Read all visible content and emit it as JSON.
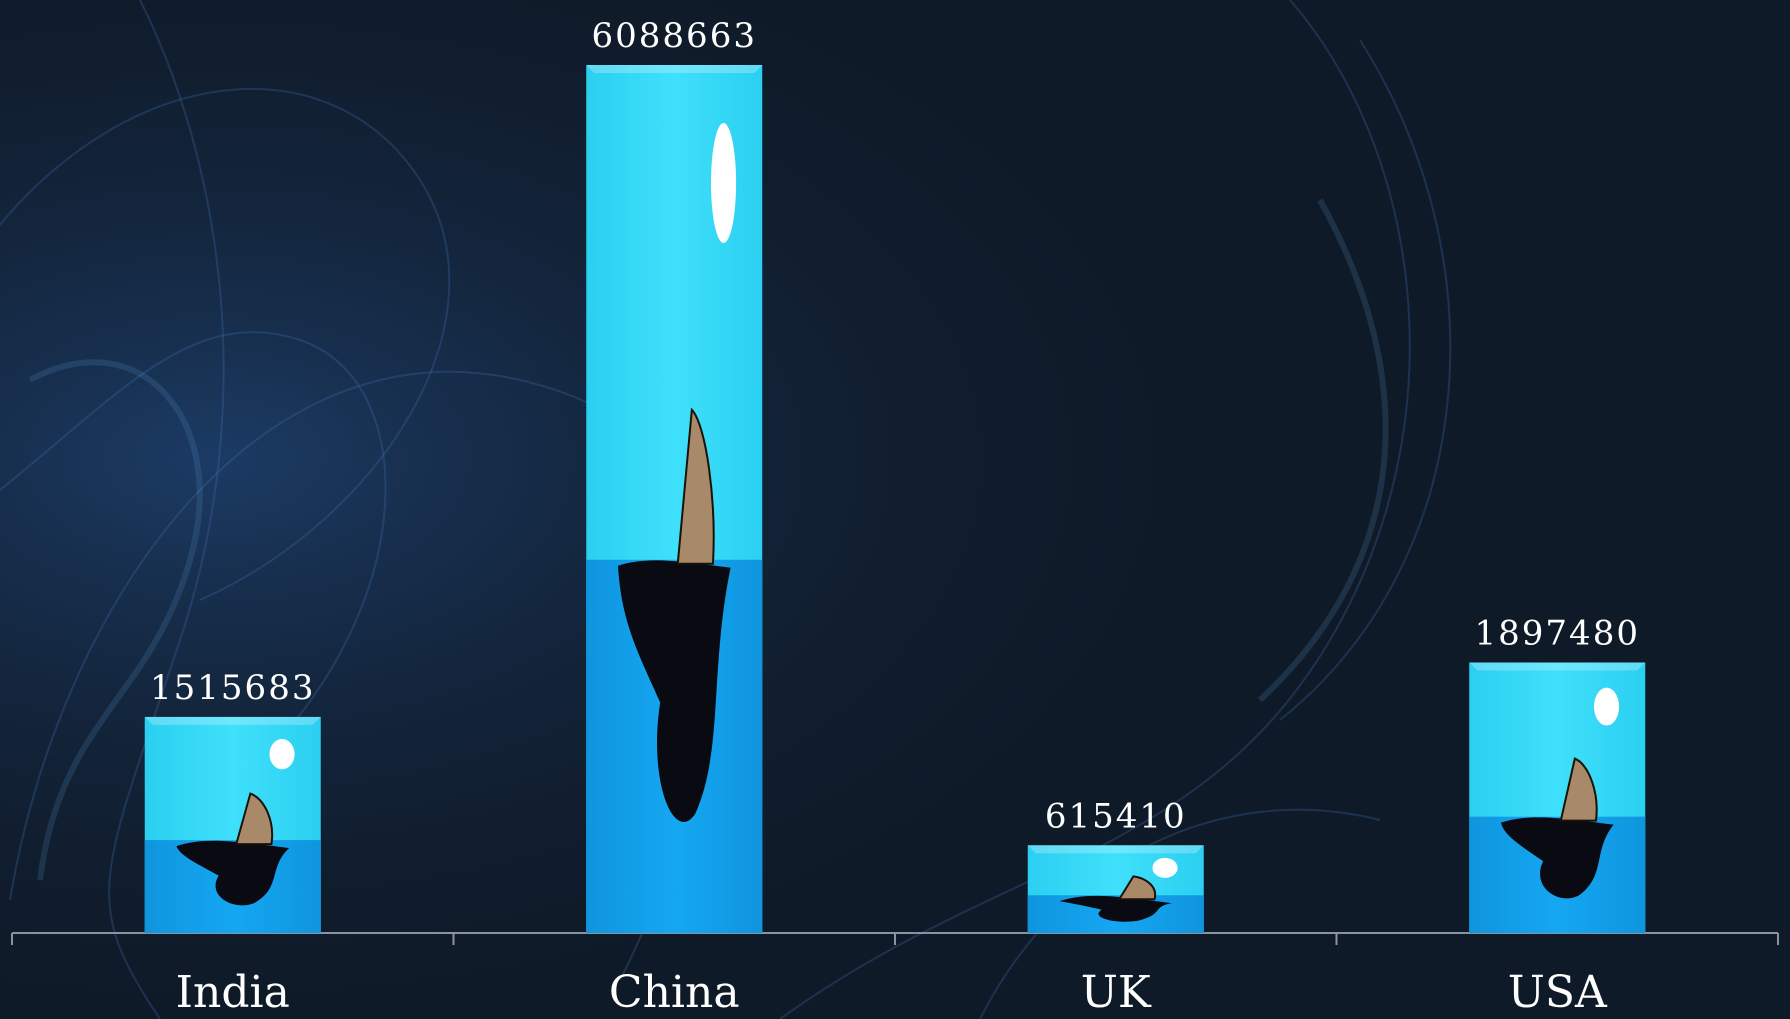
{
  "chart_data": {
    "type": "bar",
    "categories": [
      "India",
      "China",
      "UK",
      "USA"
    ],
    "values": [
      1515683,
      6088663,
      615410,
      1897480
    ],
    "value_labels": [
      "1515683",
      "6088663",
      "615410",
      "1897480"
    ],
    "title": "",
    "xlabel": "",
    "ylabel": "",
    "ylim": [
      0,
      6088663
    ],
    "grid": false,
    "legend": "none"
  },
  "colors": {
    "background": "#0f1a28",
    "bar_sky": "#3fe0fb",
    "bar_water": "#15a7f2",
    "axis": "#8a93a0",
    "text": "#ffffff"
  }
}
